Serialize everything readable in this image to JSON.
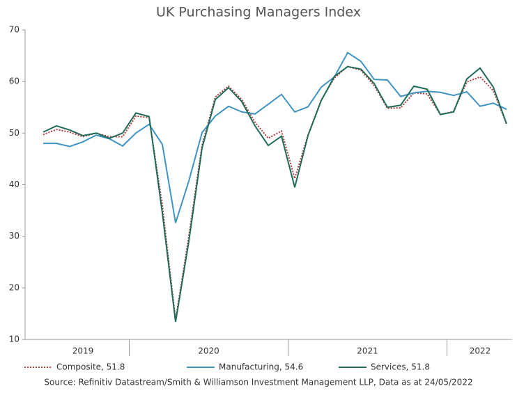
{
  "chart_data": {
    "type": "line",
    "title": "UK Purchasing Managers Index",
    "source": "Source: Refinitiv Datastream/Smith & Williamson Investment Management LLP, Data as at 24/05/2022",
    "categories": [
      "2019",
      null,
      null,
      null,
      null,
      null,
      null,
      "2020",
      null,
      null,
      null,
      null,
      null,
      null,
      null,
      null,
      null,
      null,
      null,
      "2021",
      null,
      null,
      null,
      null,
      null,
      null,
      null,
      null,
      null,
      null,
      null,
      "2022",
      null,
      null,
      null,
      null
    ],
    "ylim": [
      10,
      70
    ],
    "yticks": [
      10,
      20,
      30,
      40,
      50,
      60,
      70
    ],
    "grid": false,
    "legend": "bottom",
    "series": [
      {
        "name": "Composite, 51.8",
        "color": "#b03a3a",
        "style": "dotted",
        "values": [
          49.7,
          50.7,
          50.2,
          49.3,
          50.0,
          49.3,
          49.3,
          53.3,
          53.0,
          36.0,
          13.8,
          30.0,
          47.7,
          57.0,
          59.1,
          56.5,
          52.1,
          49.0,
          50.4,
          41.2,
          49.6,
          56.4,
          60.7,
          62.9,
          62.2,
          59.2,
          54.8,
          54.9,
          57.8,
          57.6,
          53.6,
          54.2,
          59.9,
          60.9,
          58.2,
          51.8
        ]
      },
      {
        "name": "Manufacturing, 54.6",
        "color": "#3d94c2",
        "style": "solid",
        "values": [
          48.0,
          48.0,
          47.4,
          48.3,
          49.6,
          48.9,
          47.5,
          50.0,
          51.7,
          47.8,
          32.6,
          40.7,
          50.1,
          53.3,
          55.2,
          54.1,
          53.7,
          55.6,
          57.5,
          54.1,
          55.1,
          58.9,
          60.9,
          65.6,
          63.9,
          60.4,
          60.3,
          57.1,
          57.8,
          58.1,
          57.9,
          57.3,
          58.0,
          55.2,
          55.8,
          54.6
        ]
      },
      {
        "name": "Services, 51.8",
        "color": "#1f6b5a",
        "style": "solid",
        "values": [
          50.2,
          51.4,
          50.6,
          49.5,
          50.0,
          49.0,
          50.0,
          53.9,
          53.2,
          34.5,
          13.4,
          29.0,
          47.1,
          56.5,
          58.8,
          56.1,
          51.4,
          47.6,
          49.4,
          39.5,
          49.5,
          56.3,
          61.0,
          62.9,
          62.4,
          59.6,
          55.0,
          55.4,
          59.1,
          58.5,
          53.6,
          54.1,
          60.5,
          62.6,
          58.9,
          51.8
        ]
      }
    ]
  }
}
